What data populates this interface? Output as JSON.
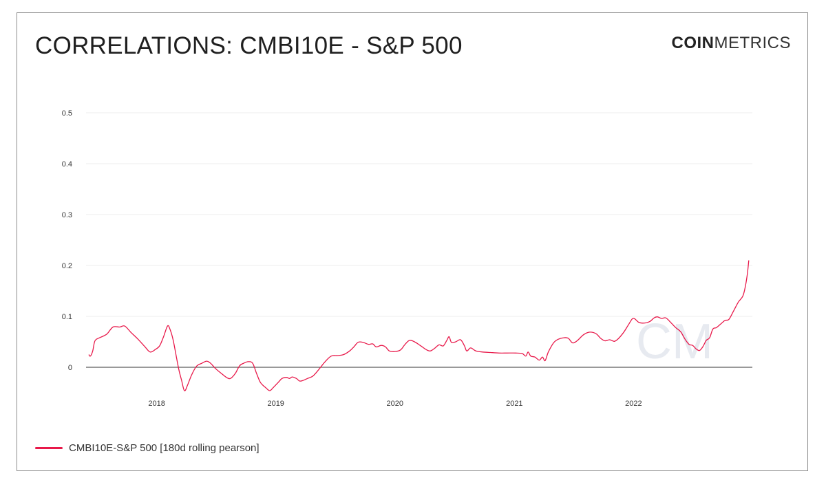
{
  "header": {
    "title": "CORRELATIONS: CMBI10E - S&P 500",
    "logo_bold": "COIN",
    "logo_light": "METRICS"
  },
  "watermark": "CM",
  "colors": {
    "series": "#e8194a",
    "grid": "#ececec",
    "zero_line": "#333333",
    "tick_text": "#333333"
  },
  "chart_data": {
    "type": "line",
    "title": "CORRELATIONS: CMBI10E - S&P 500",
    "xlabel": "",
    "ylabel": "",
    "ylim": [
      -0.05,
      0.55
    ],
    "xlim": [
      "2017-06-07",
      "2022-12-31"
    ],
    "y_ticks": [
      0,
      0.1,
      0.2,
      0.3,
      0.4,
      0.5
    ],
    "y_tick_labels": [
      "0",
      "0.1",
      "0.2",
      "0.3",
      "0.4",
      "0.5"
    ],
    "x_ticks": [
      "2018-01-01",
      "2019-01-01",
      "2020-01-01",
      "2021-01-01",
      "2022-01-01"
    ],
    "x_tick_labels": [
      "2018",
      "2019",
      "2020",
      "2021",
      "2022"
    ],
    "grid": true,
    "legend_position": "bottom-left",
    "series": [
      {
        "name": "CMBI10E-S&P 500 [180d rolling pearson]",
        "points": [
          [
            "2017-06-07",
            0.025
          ],
          [
            "2017-06-12",
            0.022
          ],
          [
            "2017-06-19",
            0.032
          ],
          [
            "2017-06-26",
            0.052
          ],
          [
            "2017-07-10",
            0.058
          ],
          [
            "2017-08-01",
            0.065
          ],
          [
            "2017-08-20",
            0.079
          ],
          [
            "2017-09-10",
            0.079
          ],
          [
            "2017-09-25",
            0.081
          ],
          [
            "2017-10-15",
            0.068
          ],
          [
            "2017-11-05",
            0.055
          ],
          [
            "2017-11-25",
            0.041
          ],
          [
            "2017-12-12",
            0.03
          ],
          [
            "2017-12-28",
            0.035
          ],
          [
            "2018-01-10",
            0.042
          ],
          [
            "2018-01-22",
            0.06
          ],
          [
            "2018-02-03",
            0.081
          ],
          [
            "2018-02-10",
            0.076
          ],
          [
            "2018-02-20",
            0.055
          ],
          [
            "2018-03-01",
            0.025
          ],
          [
            "2018-03-10",
            -0.005
          ],
          [
            "2018-03-18",
            -0.025
          ],
          [
            "2018-03-27",
            -0.046
          ],
          [
            "2018-04-05",
            -0.036
          ],
          [
            "2018-04-18",
            -0.015
          ],
          [
            "2018-05-03",
            0.002
          ],
          [
            "2018-05-20",
            0.008
          ],
          [
            "2018-06-03",
            0.012
          ],
          [
            "2018-06-15",
            0.008
          ],
          [
            "2018-07-01",
            -0.003
          ],
          [
            "2018-07-18",
            -0.012
          ],
          [
            "2018-08-03",
            -0.02
          ],
          [
            "2018-08-15",
            -0.022
          ],
          [
            "2018-08-30",
            -0.012
          ],
          [
            "2018-09-12",
            0.003
          ],
          [
            "2018-09-25",
            0.008
          ],
          [
            "2018-10-08",
            0.011
          ],
          [
            "2018-10-22",
            0.008
          ],
          [
            "2018-11-03",
            -0.012
          ],
          [
            "2018-11-15",
            -0.03
          ],
          [
            "2018-12-01",
            -0.04
          ],
          [
            "2018-12-13",
            -0.046
          ],
          [
            "2018-12-24",
            -0.04
          ],
          [
            "2019-01-08",
            -0.03
          ],
          [
            "2019-01-20",
            -0.022
          ],
          [
            "2019-02-03",
            -0.02
          ],
          [
            "2019-02-12",
            -0.022
          ],
          [
            "2019-02-20",
            -0.019
          ],
          [
            "2019-03-05",
            -0.022
          ],
          [
            "2019-03-15",
            -0.027
          ],
          [
            "2019-03-25",
            -0.026
          ],
          [
            "2019-04-08",
            -0.022
          ],
          [
            "2019-04-25",
            -0.017
          ],
          [
            "2019-05-12",
            -0.005
          ],
          [
            "2019-06-01",
            0.011
          ],
          [
            "2019-06-20",
            0.022
          ],
          [
            "2019-07-10",
            0.023
          ],
          [
            "2019-07-28",
            0.025
          ],
          [
            "2019-08-15",
            0.032
          ],
          [
            "2019-08-28",
            0.04
          ],
          [
            "2019-09-10",
            0.049
          ],
          [
            "2019-09-25",
            0.049
          ],
          [
            "2019-10-12",
            0.045
          ],
          [
            "2019-10-25",
            0.046
          ],
          [
            "2019-11-05",
            0.04
          ],
          [
            "2019-11-20",
            0.043
          ],
          [
            "2019-12-03",
            0.04
          ],
          [
            "2019-12-15",
            0.032
          ],
          [
            "2020-01-01",
            0.031
          ],
          [
            "2020-01-18",
            0.034
          ],
          [
            "2020-02-01",
            0.045
          ],
          [
            "2020-02-15",
            0.053
          ],
          [
            "2020-03-01",
            0.05
          ],
          [
            "2020-03-18",
            0.043
          ],
          [
            "2020-04-05",
            0.035
          ],
          [
            "2020-04-18",
            0.032
          ],
          [
            "2020-05-01",
            0.037
          ],
          [
            "2020-05-15",
            0.044
          ],
          [
            "2020-05-28",
            0.042
          ],
          [
            "2020-06-08",
            0.053
          ],
          [
            "2020-06-15",
            0.06
          ],
          [
            "2020-06-22",
            0.049
          ],
          [
            "2020-07-05",
            0.05
          ],
          [
            "2020-07-20",
            0.054
          ],
          [
            "2020-08-01",
            0.042
          ],
          [
            "2020-08-08",
            0.032
          ],
          [
            "2020-08-20",
            0.038
          ],
          [
            "2020-09-05",
            0.032
          ],
          [
            "2020-09-25",
            0.03
          ],
          [
            "2020-10-20",
            0.029
          ],
          [
            "2020-11-15",
            0.028
          ],
          [
            "2020-12-10",
            0.028
          ],
          [
            "2021-01-05",
            0.028
          ],
          [
            "2021-01-25",
            0.027
          ],
          [
            "2021-02-05",
            0.022
          ],
          [
            "2021-02-12",
            0.03
          ],
          [
            "2021-02-20",
            0.022
          ],
          [
            "2021-03-05",
            0.02
          ],
          [
            "2021-03-18",
            0.014
          ],
          [
            "2021-03-28",
            0.02
          ],
          [
            "2021-04-05",
            0.013
          ],
          [
            "2021-04-15",
            0.03
          ],
          [
            "2021-05-01",
            0.048
          ],
          [
            "2021-05-15",
            0.055
          ],
          [
            "2021-06-01",
            0.058
          ],
          [
            "2021-06-15",
            0.057
          ],
          [
            "2021-06-28",
            0.048
          ],
          [
            "2021-07-12",
            0.052
          ],
          [
            "2021-08-01",
            0.064
          ],
          [
            "2021-08-20",
            0.069
          ],
          [
            "2021-09-08",
            0.066
          ],
          [
            "2021-09-22",
            0.057
          ],
          [
            "2021-10-05",
            0.052
          ],
          [
            "2021-10-20",
            0.054
          ],
          [
            "2021-11-03",
            0.051
          ],
          [
            "2021-11-15",
            0.056
          ],
          [
            "2021-12-01",
            0.068
          ],
          [
            "2021-12-15",
            0.082
          ],
          [
            "2021-12-28",
            0.095
          ],
          [
            "2022-01-05",
            0.095
          ],
          [
            "2022-01-18",
            0.088
          ],
          [
            "2022-02-05",
            0.087
          ],
          [
            "2022-02-20",
            0.09
          ],
          [
            "2022-03-05",
            0.097
          ],
          [
            "2022-03-15",
            0.099
          ],
          [
            "2022-03-28",
            0.096
          ],
          [
            "2022-04-10",
            0.097
          ],
          [
            "2022-04-25",
            0.088
          ],
          [
            "2022-05-10",
            0.078
          ],
          [
            "2022-05-25",
            0.07
          ],
          [
            "2022-06-08",
            0.055
          ],
          [
            "2022-06-20",
            0.045
          ],
          [
            "2022-07-01",
            0.043
          ],
          [
            "2022-07-12",
            0.036
          ],
          [
            "2022-07-22",
            0.033
          ],
          [
            "2022-08-01",
            0.04
          ],
          [
            "2022-08-12",
            0.053
          ],
          [
            "2022-08-22",
            0.058
          ],
          [
            "2022-09-01",
            0.075
          ],
          [
            "2022-09-12",
            0.078
          ],
          [
            "2022-09-25",
            0.085
          ],
          [
            "2022-10-08",
            0.092
          ],
          [
            "2022-10-20",
            0.094
          ],
          [
            "2022-11-03",
            0.11
          ],
          [
            "2022-11-18",
            0.128
          ],
          [
            "2022-12-02",
            0.14
          ],
          [
            "2022-12-10",
            0.16
          ],
          [
            "2022-12-16",
            0.185
          ],
          [
            "2022-12-20",
            0.21
          ]
        ]
      }
    ]
  },
  "legend": {
    "label": "CMBI10E-S&P 500 [180d rolling pearson]"
  }
}
